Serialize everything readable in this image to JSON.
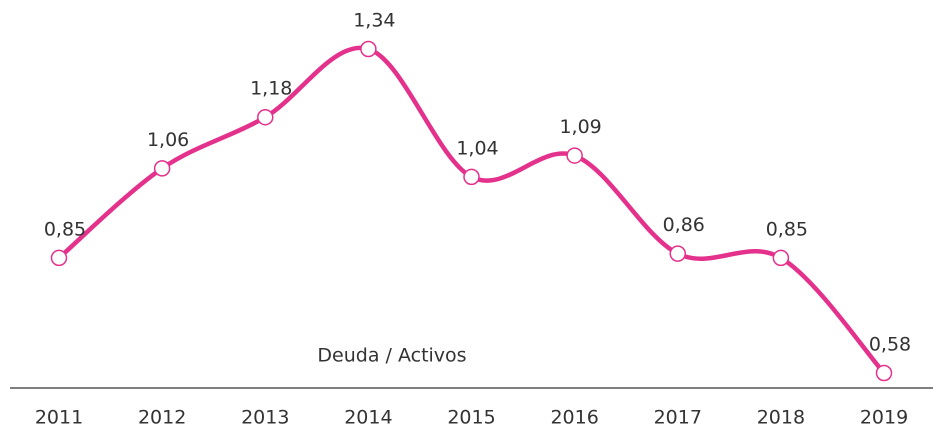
{
  "chart_data": {
    "type": "line",
    "categories": [
      "2011",
      "2012",
      "2013",
      "2014",
      "2015",
      "2016",
      "2017",
      "2018",
      "2019"
    ],
    "series": [
      {
        "name": "Deuda / Activos",
        "color": "#e4318c",
        "values": [
          0.85,
          1.06,
          1.18,
          1.34,
          1.04,
          1.09,
          0.86,
          0.85,
          0.58
        ],
        "value_labels": [
          "0,85",
          "1,06",
          "1,18",
          "1,34",
          "1,04",
          "1,09",
          "0,86",
          "0,85",
          "0,58"
        ]
      }
    ]
  }
}
